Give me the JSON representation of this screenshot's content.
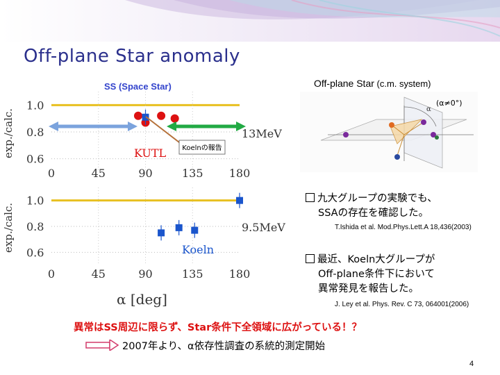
{
  "slide": {
    "title": "Off-plane Star anomaly",
    "ss_label": "SS (Space Star)",
    "offplane_label": "Off-plane Star",
    "offplane_system": " (c.m. system)",
    "page_number": "4"
  },
  "plot": {
    "ylabel": "exp./calc.",
    "xlabel": "α [deg]",
    "top_yticks": [
      "1.0",
      "0.8",
      "0.6"
    ],
    "bottom_yticks": [
      "1.0",
      "0.8",
      "0.6"
    ],
    "xticks": [
      "0",
      "45",
      "90",
      "135",
      "180"
    ],
    "top_energy": "13MeV",
    "bottom_energy": "9.5MeV",
    "kutl_label": "KUTL",
    "koeln_label": "Koeln",
    "callout": "Koelnの報告"
  },
  "diagram": {
    "condition": "(α≠0°)",
    "alpha": "α"
  },
  "bullets": [
    {
      "line1": "九大グループの実験でも、",
      "line2": "SSAの存在を確認した。",
      "ref": "T.Ishida et al. Mod.Phys.Lett.A 18,436(2003)"
    },
    {
      "line1": "最近、Koeln大グループが",
      "line2": "Off-plane条件下において",
      "line3": "異常発見を報告した。",
      "ref": "J. Ley et al. Phys. Rev. C 73, 064001(2006)"
    }
  ],
  "conclusion": "異常はSS周辺に限らず、Star条件下全領域に広がっている！？",
  "start_text": "2007年より、α依存性調査の系統的測定開始",
  "chart_data": [
    {
      "type": "scatter",
      "title": "",
      "xlabel": "α [deg]",
      "ylabel": "exp./calc.",
      "xlim": [
        0,
        180
      ],
      "ylim": [
        0.5,
        1.1
      ],
      "annotation": "13MeV",
      "series": [
        {
          "name": "KUTL",
          "color": "#dd1111",
          "points": [
            [
              83,
              0.92
            ],
            [
              90,
              0.87
            ],
            [
              105,
              0.92
            ],
            [
              118,
              0.9
            ]
          ]
        },
        {
          "name": "Koeln",
          "color": "#1a55cc",
          "points": [
            [
              90,
              0.91
            ]
          ]
        }
      ]
    },
    {
      "type": "scatter",
      "title": "",
      "xlabel": "α [deg]",
      "ylabel": "exp./calc.",
      "xlim": [
        0,
        180
      ],
      "ylim": [
        0.5,
        1.1
      ],
      "annotation": "9.5MeV",
      "series": [
        {
          "name": "Koeln",
          "color": "#1a55cc",
          "points": [
            [
              105,
              0.75
            ],
            [
              122,
              0.79
            ],
            [
              137,
              0.77
            ],
            [
              180,
              1.0
            ]
          ]
        }
      ]
    }
  ],
  "colors": {
    "title": "#2a2f8c",
    "kutl": "#dd1111",
    "koeln": "#1a55cc",
    "ss_band": "#7ba3dd",
    "offplane_band": "#22aa44",
    "unity_line": "#e8c020",
    "conclusion": "#dd1111"
  }
}
